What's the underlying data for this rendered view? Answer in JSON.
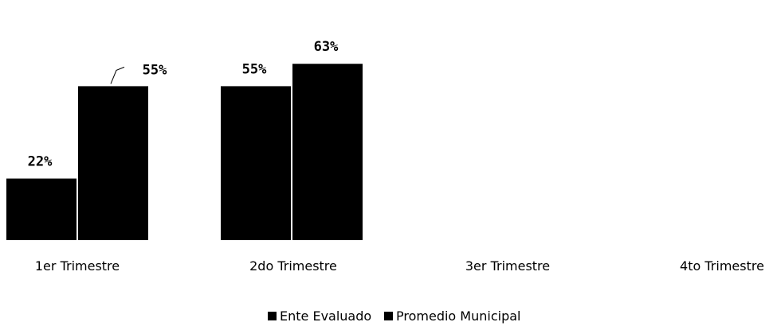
{
  "chart_data": {
    "type": "bar",
    "categories": [
      "1er Trimestre",
      "2do Trimestre",
      "3er Trimestre",
      "4to Trimestre"
    ],
    "series": [
      {
        "name": "Ente Evaluado",
        "values": [
          22,
          55,
          null,
          null
        ],
        "labels": [
          "22%",
          "55%",
          "",
          ""
        ],
        "color": "#000000"
      },
      {
        "name": "Promedio Municipal",
        "values": [
          55,
          63,
          null,
          null
        ],
        "labels": [
          "55%",
          "63%",
          "",
          ""
        ],
        "color": "#000000"
      }
    ],
    "ylim": [
      0,
      70
    ],
    "unit": "%",
    "grid": false,
    "legend_position": "bottom"
  }
}
